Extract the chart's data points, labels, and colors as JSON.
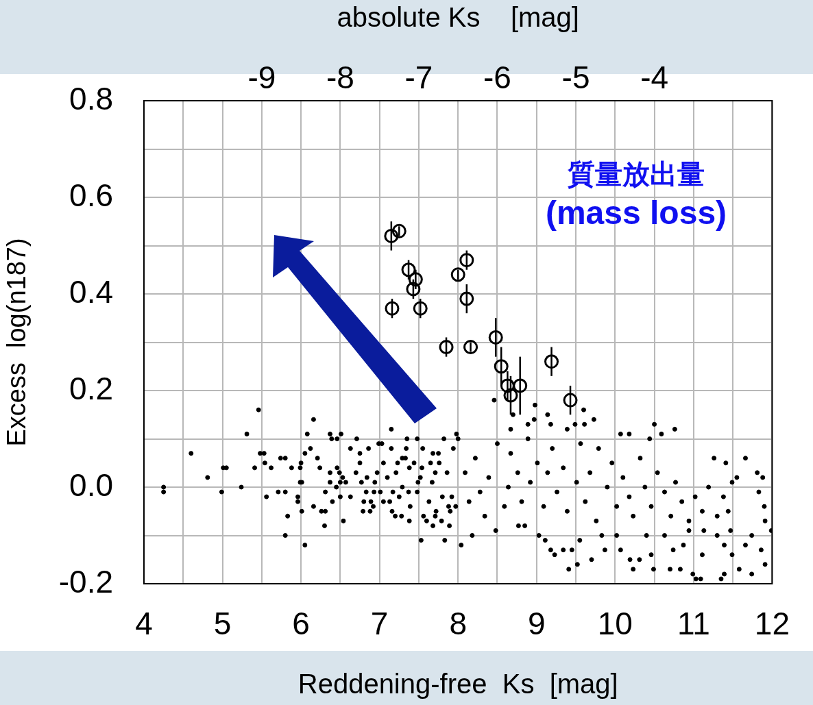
{
  "chart_data": {
    "type": "scatter",
    "xlabel": "Reddening-free  Ks  [mag]",
    "ylabel": "Excess  log(n187)",
    "x2label": "absolute Ks    [mag]",
    "xlim": [
      4,
      12
    ],
    "xticks": [
      4,
      {
        "value": 4.5,
        "label": null
      },
      5,
      {
        "value": 5.5,
        "label": null
      },
      6,
      {
        "value": 6.5,
        "label": null
      },
      7,
      {
        "value": 7.5,
        "label": null
      },
      8,
      {
        "value": 8.5,
        "label": null
      },
      9,
      {
        "value": 9.5,
        "label": null
      },
      10,
      {
        "value": 10.5,
        "label": null
      },
      11,
      {
        "value": 11.5,
        "label": null
      },
      12
    ],
    "x2lim": [
      -10.5,
      -2.5
    ],
    "x2ticks": [
      -9,
      -8,
      -7,
      -6,
      -5,
      -4
    ],
    "ylim": [
      -0.2,
      0.8
    ],
    "yticks": [
      {
        "value": -0.2,
        "label": "-0.2"
      },
      {
        "value": -0.1,
        "label": null
      },
      {
        "value": 0,
        "label": "0.0"
      },
      {
        "value": 0.1,
        "label": null
      },
      {
        "value": 0.2,
        "label": "0.2"
      },
      {
        "value": 0.3,
        "label": null
      },
      {
        "value": 0.4,
        "label": "0.4"
      },
      {
        "value": 0.5,
        "label": null
      },
      {
        "value": 0.6,
        "label": "0.6"
      },
      {
        "value": 0.7,
        "label": null
      },
      {
        "value": 0.8,
        "label": "0.8"
      }
    ],
    "grid": true,
    "legend": false,
    "marker": "circle",
    "annotations": [
      "質量放出量",
      "(mass loss)"
    ],
    "series": [
      {
        "color": "#000000",
        "x": [
          4.25,
          4.25,
          4.6,
          4.81,
          5.01,
          5.05,
          4.99,
          5.24,
          5.31,
          5.46,
          5.48,
          5.53,
          5.54,
          5.41,
          5.56,
          5.62,
          5.71,
          5.8,
          5.74,
          5.8,
          5.83,
          5.8,
          5.88,
          5.96,
          5.96,
          6.01,
          5.99,
          6.0,
          5.99,
          6.01,
          6.05,
          6.05,
          6.08,
          6.12,
          6.16,
          6.16,
          6.21,
          6.24,
          6.26,
          6.31,
          6.3,
          6.31,
          6.37,
          6.39,
          6.46,
          6.51,
          6.37,
          6.37,
          6.4,
          6.46,
          6.49,
          6.53,
          6.45,
          6.5,
          6.5,
          6.54,
          6.57,
          6.63,
          6.63,
          6.71,
          6.7,
          6.75,
          6.75,
          6.77,
          6.8,
          6.79,
          6.88,
          6.83,
          6.84,
          6.86,
          6.89,
          6.92,
          6.93,
          6.94,
          6.97,
          6.99,
          7.03,
          7.01,
          7.05,
          7.05,
          7.15,
          7.13,
          7.15,
          7.1,
          7.17,
          7.2,
          7.16,
          7.21,
          7.25,
          7.23,
          7.29,
          7.33,
          7.28,
          7.29,
          7.35,
          7.34,
          7.38,
          7.39,
          7.37,
          7.38,
          7.44,
          7.48,
          7.48,
          7.49,
          7.53,
          7.55,
          7.54,
          7.52,
          7.56,
          7.6,
          7.63,
          7.65,
          7.67,
          7.68,
          7.71,
          7.72,
          7.68,
          7.71,
          7.75,
          7.76,
          7.79,
          7.82,
          7.83,
          7.8,
          7.86,
          7.88,
          7.89,
          7.9,
          7.92,
          7.94,
          7.98,
          7.97,
          8.46,
          8.7,
          8.67,
          8.98,
          8.97,
          8.89,
          9.14,
          9.18,
          9.6,
          9.73,
          9.49,
          9.39,
          9.61,
          10.5,
          10.76,
          10.59,
          10.07,
          10.18,
          10.44,
          11.26,
          11.66,
          11.81,
          11.88,
          11.41,
          11.55,
          11.49,
          11.83,
          11.9,
          11.91,
          11.99,
          11.91,
          11.74,
          11.58,
          11.39,
          11.35,
          11.09,
          11.03,
          10.99,
          10.83,
          10.7,
          10.49,
          10.23,
          10.19,
          10.31,
          9.52,
          9.41,
          9.7,
          9.23,
          9.18,
          9.45,
          9.34,
          9.87,
          10.07,
          8.04,
          8.18,
          8.48,
          8.77,
          8.85,
          9.03,
          9.11,
          9.55,
          9.83,
          10.02,
          10.46,
          10.74,
          10.87,
          11.11,
          11.39,
          11.49,
          11.66,
          11.86,
          11.74,
          11.47,
          11.3,
          11.13,
          10.94,
          10.63,
          10.4,
          8.0,
          8.09,
          8.22,
          8.28,
          8.14,
          8.34,
          8.39,
          8.5,
          8.59,
          8.64,
          8.67,
          8.76,
          8.81,
          8.89,
          8.92,
          9.01,
          9.09,
          9.14,
          9.2,
          9.26,
          9.34,
          9.39,
          9.51,
          9.56,
          9.62,
          9.68,
          9.76,
          9.79,
          9.9,
          9.96,
          10.02,
          10.1,
          10.18,
          10.23,
          10.32,
          10.38,
          10.46,
          10.54,
          10.63,
          10.71,
          10.77,
          10.85,
          10.94,
          11.02,
          11.11,
          11.19,
          11.3,
          11.38,
          11.44
        ],
        "values": [
          0.0,
          -0.01,
          0.07,
          0.02,
          0.04,
          0.04,
          -0.01,
          0.0,
          0.11,
          0.16,
          0.07,
          0.07,
          0.05,
          0.04,
          -0.02,
          0.04,
          -0.01,
          -0.01,
          0.06,
          0.06,
          -0.06,
          -0.1,
          0.04,
          -0.02,
          -0.03,
          -0.05,
          0.04,
          0.05,
          0.01,
          0.01,
          -0.12,
          0.07,
          0.11,
          0.08,
          0.14,
          -0.04,
          0.06,
          0.04,
          -0.05,
          -0.05,
          -0.08,
          -0.01,
          0.11,
          0.1,
          0.1,
          0.11,
          0.03,
          0.01,
          -0.03,
          0.04,
          0.03,
          0.02,
          0.0,
          0.01,
          -0.02,
          -0.07,
          0.01,
          0.08,
          -0.02,
          0.1,
          0.03,
          0.07,
          0.05,
          0.01,
          -0.03,
          -0.05,
          -0.05,
          -0.01,
          0.02,
          0.08,
          -0.03,
          -0.04,
          -0.01,
          0.01,
          0.03,
          0.09,
          0.09,
          -0.01,
          -0.03,
          0.05,
          0.12,
          -0.03,
          0.08,
          0.02,
          -0.01,
          -0.06,
          -0.05,
          0.03,
          -0.02,
          0.05,
          0.06,
          0.06,
          -0.06,
          0.0,
          0.1,
          0.08,
          -0.07,
          -0.04,
          -0.01,
          0.04,
          0.05,
          0.1,
          -0.01,
          0.01,
          -0.11,
          0.08,
          0.04,
          0.02,
          -0.06,
          -0.07,
          -0.03,
          0.05,
          0.01,
          0.07,
          0.03,
          -0.05,
          -0.08,
          -0.06,
          0.07,
          0.05,
          -0.07,
          0.1,
          -0.11,
          -0.02,
          0.03,
          -0.04,
          -0.08,
          -0.05,
          -0.02,
          0.08,
          0.11,
          -0.04,
          0.18,
          0.15,
          0.12,
          0.17,
          0.14,
          0.13,
          0.15,
          0.13,
          0.16,
          0.14,
          0.13,
          0.12,
          0.13,
          0.13,
          0.12,
          0.11,
          0.11,
          0.11,
          0.1,
          0.06,
          0.06,
          0.03,
          0.02,
          0.05,
          0.02,
          0.01,
          -0.01,
          -0.04,
          -0.07,
          -0.09,
          -0.16,
          -0.18,
          -0.17,
          -0.18,
          -0.19,
          -0.19,
          -0.19,
          -0.18,
          -0.17,
          -0.17,
          -0.17,
          -0.17,
          -0.15,
          -0.15,
          -0.16,
          -0.17,
          -0.15,
          -0.14,
          -0.13,
          -0.13,
          -0.13,
          -0.13,
          -0.13,
          -0.12,
          -0.1,
          -0.09,
          -0.08,
          -0.08,
          -0.1,
          -0.11,
          -0.11,
          -0.1,
          -0.1,
          -0.14,
          -0.13,
          -0.12,
          -0.14,
          -0.12,
          -0.14,
          -0.12,
          -0.13,
          -0.1,
          -0.09,
          -0.1,
          -0.09,
          -0.09,
          -0.1,
          -0.1,
          0.1,
          0.03,
          0.06,
          -0.01,
          -0.03,
          -0.06,
          0.02,
          0.09,
          -0.04,
          0.0,
          0.07,
          0.03,
          -0.03,
          0.1,
          0.01,
          0.05,
          -0.04,
          0.03,
          0.08,
          -0.01,
          0.04,
          -0.05,
          0.01,
          0.09,
          -0.03,
          0.03,
          -0.07,
          0.08,
          0.0,
          0.05,
          -0.04,
          0.02,
          -0.02,
          -0.06,
          0.06,
          0.0,
          -0.04,
          0.03,
          -0.01,
          -0.06,
          0.01,
          -0.03,
          -0.07,
          -0.02,
          -0.05,
          0.0,
          -0.06,
          -0.02,
          -0.05
        ]
      },
      {
        "color": "#000000",
        "x": [
          7.15,
          7.25,
          7.37,
          7.46,
          7.43,
          7.16,
          7.52,
          8.11,
          8.0,
          8.11,
          7.85,
          8.16,
          8.48,
          8.55,
          8.63,
          8.67,
          8.79,
          9.19,
          9.43
        ],
        "values": [
          0.52,
          0.53,
          0.45,
          0.43,
          0.41,
          0.37,
          0.37,
          0.47,
          0.44,
          0.39,
          0.29,
          0.29,
          0.31,
          0.25,
          0.21,
          0.19,
          0.21,
          0.26,
          0.18
        ],
        "errors": [
          0.03,
          0.01,
          0.02,
          0.02,
          0.02,
          0.02,
          0.02,
          0.02,
          0.01,
          0.03,
          0.02,
          0.01,
          0.04,
          0.04,
          0.03,
          0.04,
          0.06,
          0.03,
          0.03
        ]
      }
    ]
  }
}
